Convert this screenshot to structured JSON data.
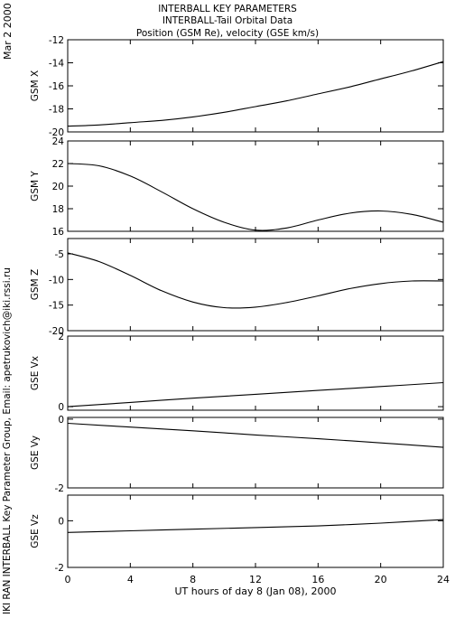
{
  "header": {
    "title_lines": [
      "INTERBALL KEY PARAMETERS",
      "INTERBALL-Tail Orbital Data",
      "Position (GSM Re), velocity (GSE km/s)"
    ],
    "date_stamp": "Mar  2 2000",
    "credit": "IKI RAN INTERBALL Key Parameter Group, Email: apetrukovich@iki.rssi.ru"
  },
  "chart_data": [
    {
      "type": "line",
      "ylabel": "GSM X",
      "ylim": [
        -20,
        -12
      ],
      "yticks": [
        "-12",
        "-14",
        "-16",
        "-18",
        "-20"
      ],
      "ytick_values": [
        -12,
        -14,
        -16,
        -18,
        -20
      ],
      "series": [
        {
          "x": [
            0,
            2,
            4,
            6,
            8,
            10,
            12,
            14,
            16,
            18,
            20,
            22,
            24
          ],
          "y": [
            -19.5,
            -19.4,
            -19.2,
            -19.0,
            -18.7,
            -18.3,
            -17.8,
            -17.3,
            -16.7,
            -16.1,
            -15.4,
            -14.7,
            -13.9
          ]
        }
      ]
    },
    {
      "type": "line",
      "ylabel": "GSM Y",
      "ylim": [
        16,
        24
      ],
      "yticks": [
        "24",
        "22",
        "20",
        "18",
        "16"
      ],
      "ytick_values": [
        24,
        22,
        20,
        18,
        16
      ],
      "series": [
        {
          "x": [
            0,
            2,
            4,
            6,
            8,
            10,
            12,
            14,
            16,
            18,
            20,
            22,
            24
          ],
          "y": [
            22.0,
            21.8,
            20.9,
            19.5,
            18.0,
            16.8,
            16.1,
            16.3,
            17.0,
            17.6,
            17.8,
            17.5,
            16.8
          ]
        }
      ]
    },
    {
      "type": "line",
      "ylabel": "GSM Z",
      "ylim": [
        -20,
        -2
      ],
      "yticks": [
        "-5",
        "-10",
        "-15",
        "-20"
      ],
      "ytick_values": [
        -5,
        -10,
        -15,
        -20
      ],
      "series": [
        {
          "x": [
            0,
            2,
            4,
            6,
            8,
            10,
            12,
            14,
            16,
            18,
            20,
            22,
            24
          ],
          "y": [
            -4.8,
            -6.5,
            -9.2,
            -12.2,
            -14.4,
            -15.5,
            -15.4,
            -14.5,
            -13.2,
            -11.8,
            -10.8,
            -10.3,
            -10.3
          ]
        }
      ]
    },
    {
      "type": "line",
      "ylabel": "GSE Vx",
      "ylim": [
        -0.1,
        2
      ],
      "yticks": [
        "2",
        "0"
      ],
      "ytick_values": [
        2,
        0
      ],
      "series": [
        {
          "x": [
            0,
            4,
            8,
            12,
            16,
            20,
            24
          ],
          "y": [
            0.0,
            0.12,
            0.24,
            0.35,
            0.46,
            0.57,
            0.68
          ]
        }
      ]
    },
    {
      "type": "line",
      "ylabel": "GSE Vy",
      "ylim": [
        -2,
        0.05
      ],
      "yticks": [
        "0",
        "-2"
      ],
      "ytick_values": [
        0,
        -2
      ],
      "series": [
        {
          "x": [
            0,
            4,
            8,
            12,
            16,
            20,
            24
          ],
          "y": [
            -0.12,
            -0.23,
            -0.34,
            -0.46,
            -0.57,
            -0.69,
            -0.82
          ]
        }
      ]
    },
    {
      "type": "line",
      "ylabel": "GSE Vz",
      "ylim": [
        -2,
        1.1
      ],
      "yticks": [
        "0",
        "-2"
      ],
      "ytick_values": [
        0,
        -2
      ],
      "series": [
        {
          "x": [
            0,
            4,
            8,
            12,
            16,
            20,
            24
          ],
          "y": [
            -0.5,
            -0.43,
            -0.36,
            -0.29,
            -0.22,
            -0.1,
            0.05
          ]
        }
      ]
    }
  ],
  "xaxis": {
    "xlim": [
      0,
      24
    ],
    "ticks": [
      "0",
      "4",
      "8",
      "12",
      "16",
      "20",
      "24"
    ],
    "tick_values": [
      0,
      4,
      8,
      12,
      16,
      20,
      24
    ],
    "label": "UT hours of day   8 (Jan 08), 2000"
  }
}
